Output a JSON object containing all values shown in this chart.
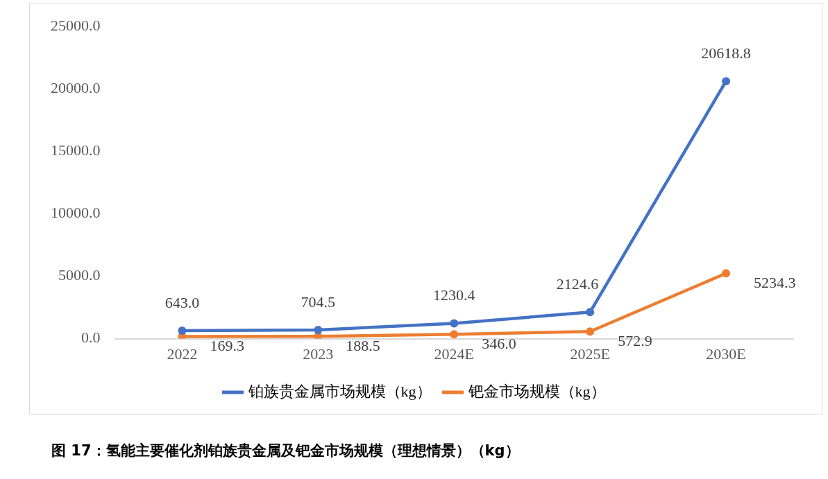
{
  "chart_data": {
    "type": "line",
    "categories": [
      "2022",
      "2023",
      "2024E",
      "2025E",
      "2030E"
    ],
    "series": [
      {
        "name": "铂族贵金属市场规模（kg）",
        "color": "#4472c4",
        "values": [
          643.0,
          704.5,
          1230.4,
          2124.6,
          20618.8
        ],
        "value_labels": [
          "643.0",
          "704.5",
          "1230.4",
          "2124.6",
          "20618.8"
        ]
      },
      {
        "name": "钯金市场规模（kg）",
        "color": "#ed7d31",
        "values": [
          169.3,
          188.5,
          346.0,
          572.9,
          5234.3
        ],
        "value_labels": [
          "169.3",
          "188.5",
          "346.0",
          "572.9",
          "5234.3"
        ]
      }
    ],
    "ylim": [
      0,
      25000
    ],
    "yticks": [
      {
        "value": 0,
        "label": "0.0"
      },
      {
        "value": 5000,
        "label": "5000.0"
      },
      {
        "value": 10000,
        "label": "10000.0"
      },
      {
        "value": 15000,
        "label": "15000.0"
      },
      {
        "value": 20000,
        "label": "20000.0"
      },
      {
        "value": 25000,
        "label": "25000.0"
      }
    ],
    "grid": false,
    "legend": "bottom",
    "marker": "circle",
    "line_style": "solid",
    "annotations": [
      "图 17：氢能主要催化剂铂族贵金属及钯金市场规模（理想情景）（kg）"
    ]
  }
}
